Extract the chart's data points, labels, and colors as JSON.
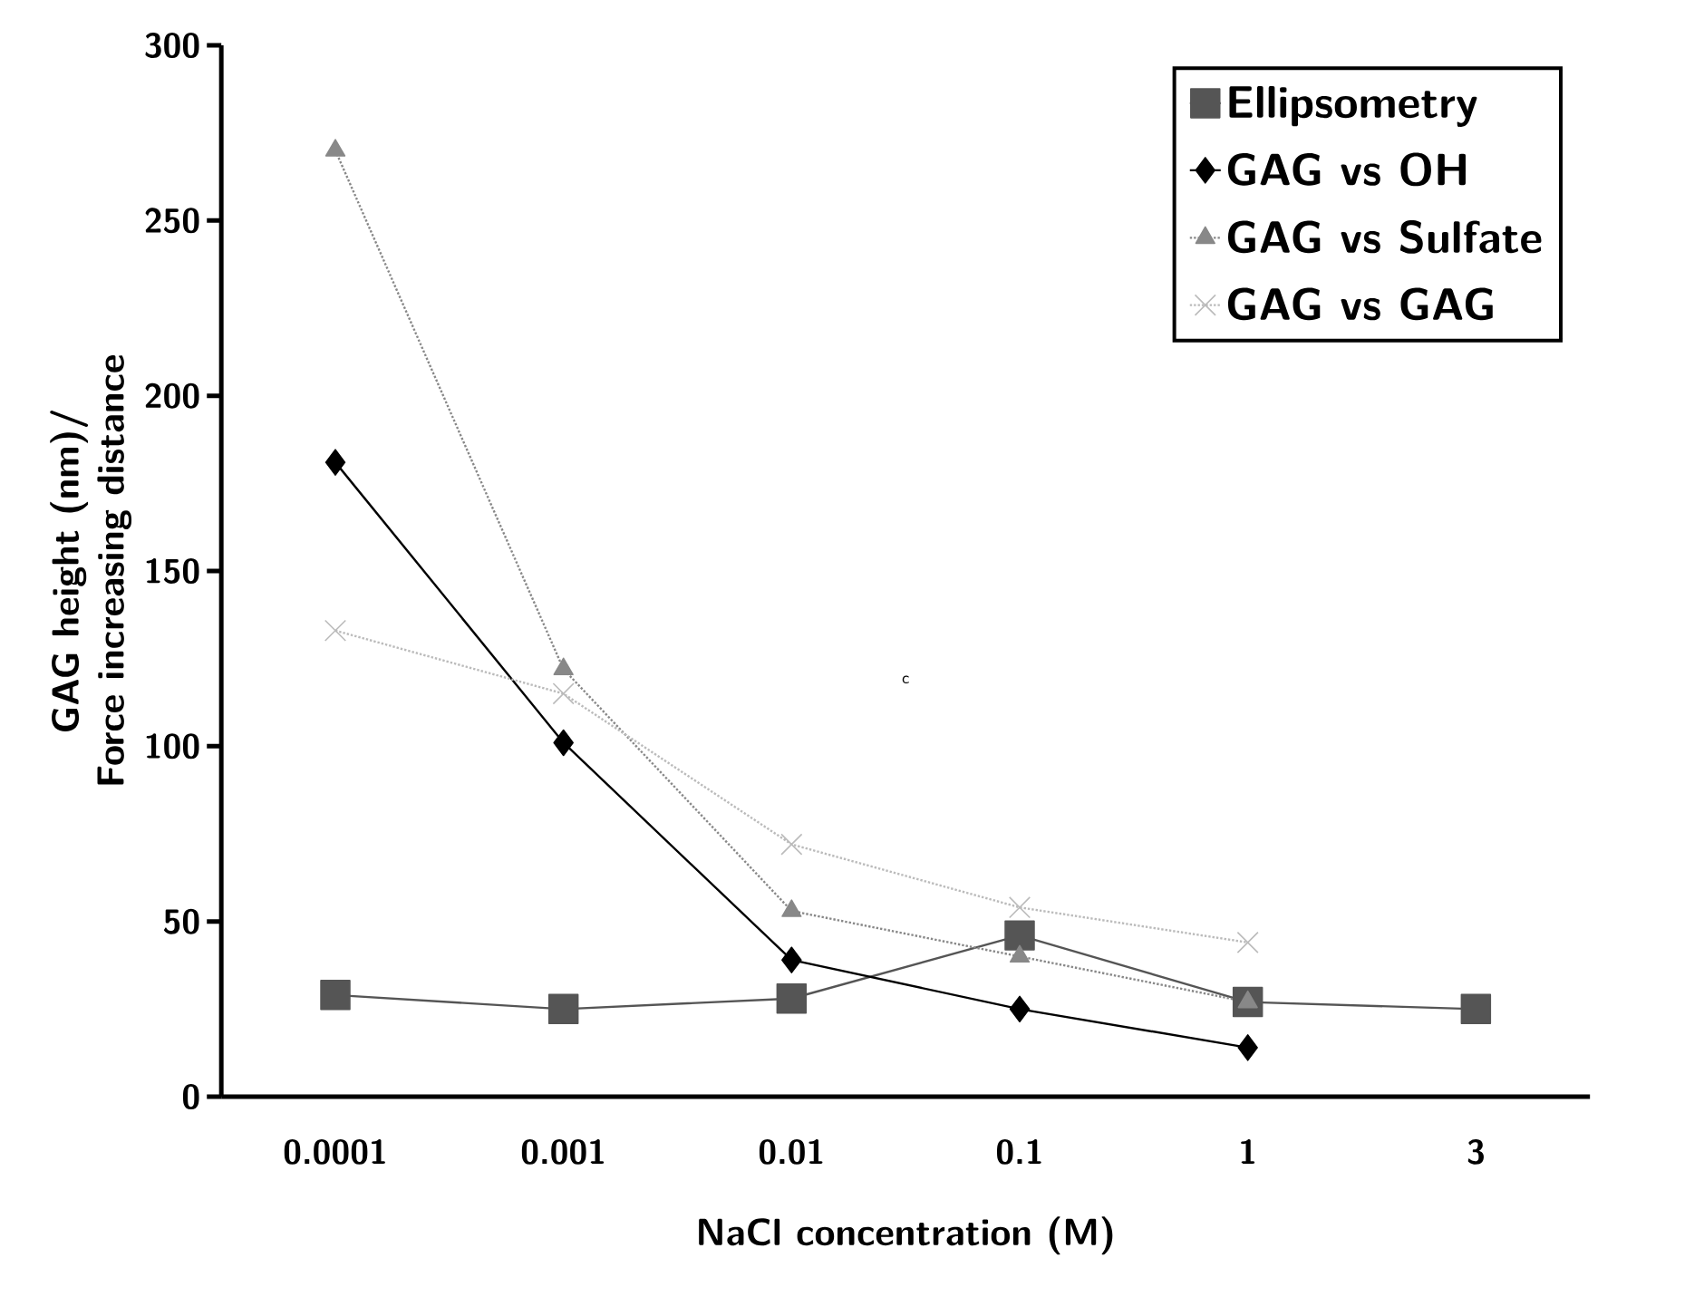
{
  "chart_data": {
    "type": "line",
    "xlabel": "NaCl concentration (M)",
    "ylabel": "GAG height (nm)/\nForce increasing distance",
    "categories": [
      "0.0001",
      "0.001",
      "0.01",
      "0.1",
      "1",
      "3"
    ],
    "series": [
      {
        "name": "Ellipsometry",
        "color": "#555555",
        "marker": "square",
        "line_style": "solid",
        "values": [
          29,
          25,
          28,
          46,
          27,
          25
        ]
      },
      {
        "name": "GAG vs OH",
        "color": "#000000",
        "marker": "diamond",
        "line_style": "solid",
        "values": [
          181,
          101,
          39,
          25,
          14,
          null
        ]
      },
      {
        "name": "GAG vs Sulfate",
        "color": "#888888",
        "marker": "triangle",
        "line_style": "dotted",
        "values": [
          270,
          122,
          53,
          40,
          27,
          null
        ]
      },
      {
        "name": "GAG vs GAG",
        "color": "#bbbbbb",
        "marker": "cross",
        "line_style": "dotted",
        "values": [
          133,
          115,
          72,
          54,
          44,
          null
        ]
      }
    ],
    "ylim": [
      0,
      300
    ],
    "yticks": [
      0,
      50,
      100,
      150,
      200,
      250,
      300
    ],
    "legend": "top right",
    "grid": false,
    "annotations": [
      "c"
    ]
  }
}
